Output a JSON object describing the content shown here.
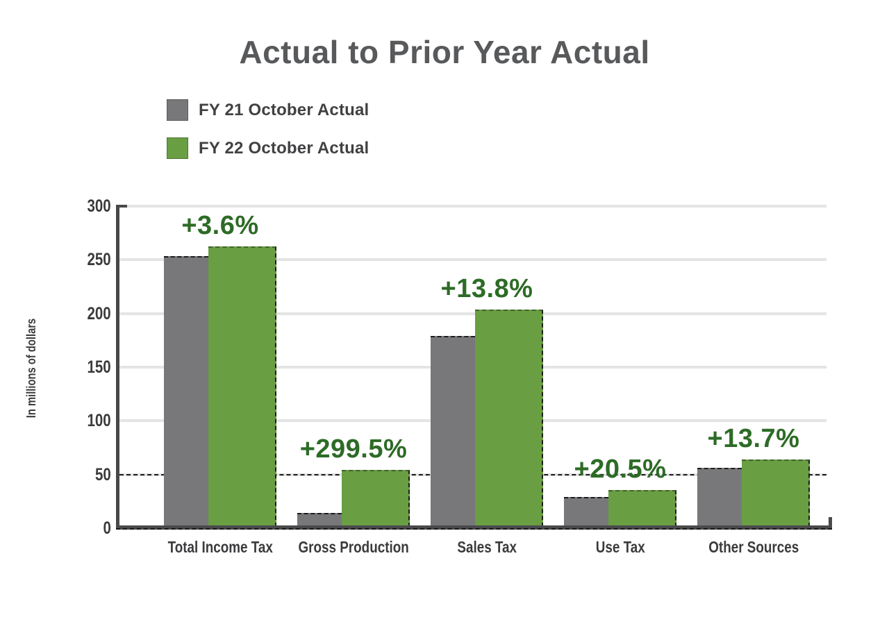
{
  "title": "Actual to Prior Year Actual",
  "y_axis_title": "In millions of dollars",
  "legend": {
    "items": [
      {
        "label": "FY 21 October Actual",
        "color": "#78787a"
      },
      {
        "label": "FY 22 October Actual",
        "color": "#699e43"
      }
    ]
  },
  "colors": {
    "fy21_bar": "#78787a",
    "fy22_bar": "#699e43",
    "pct_label_text": "#2d6b26",
    "title_text": "#58595b",
    "axis_text": "#3b3b3d",
    "axis_line": "#48484a",
    "gridline": "#e4e4e4"
  },
  "chart_data": {
    "type": "bar",
    "title": "Actual to Prior Year Actual",
    "xlabel": "",
    "ylabel": "In millions of dollars",
    "ylim": [
      0,
      300
    ],
    "yticks": [
      0,
      50,
      100,
      150,
      200,
      250,
      300
    ],
    "grid": true,
    "dashed_reference_line_y": 50,
    "legend_position": "top-left",
    "categories": [
      "Total Income Tax",
      "Gross Production",
      "Sales Tax",
      "Use Tax",
      "Other Sources"
    ],
    "series": [
      {
        "name": "FY 21 October Actual",
        "color": "#78787a",
        "values": [
          252,
          13,
          178,
          28,
          55
        ]
      },
      {
        "name": "FY 22 October Actual",
        "color": "#699e43",
        "values": [
          261,
          53,
          202.5,
          34,
          63
        ]
      }
    ],
    "annotations": [
      {
        "category": "Total Income Tax",
        "label": "+3.6%"
      },
      {
        "category": "Gross Production",
        "label": "+299.5%"
      },
      {
        "category": "Sales Tax",
        "label": "+13.8%"
      },
      {
        "category": "Use Tax",
        "label": "+20.5%"
      },
      {
        "category": "Other Sources",
        "label": "+13.7%"
      }
    ]
  }
}
